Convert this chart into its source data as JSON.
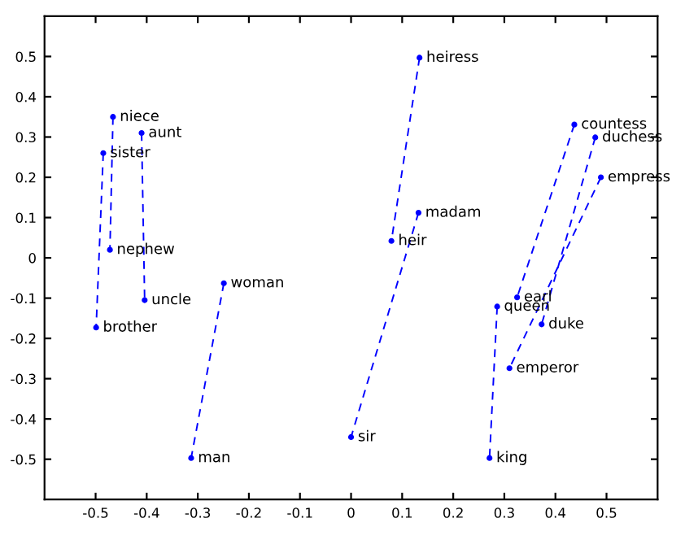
{
  "chart_data": {
    "type": "line",
    "series": [
      {
        "color": "#0000ff",
        "x": [
          -0.485,
          -0.499
        ],
        "values": [
          0.26,
          -0.173
        ]
      },
      {
        "color": "#0000ff",
        "x": [
          -0.466,
          -0.472
        ],
        "values": [
          0.35,
          0.02
        ]
      },
      {
        "color": "#0000ff",
        "x": [
          -0.41,
          -0.404
        ],
        "values": [
          0.31,
          -0.105
        ]
      },
      {
        "color": "#0000ff",
        "x": [
          -0.249,
          -0.313
        ],
        "values": [
          -0.063,
          -0.497
        ]
      },
      {
        "color": "#0000ff",
        "x": [
          0.134,
          0.079
        ],
        "values": [
          0.497,
          0.042
        ]
      },
      {
        "color": "#0000ff",
        "x": [
          0.132,
          0.0
        ],
        "values": [
          0.112,
          -0.445
        ]
      },
      {
        "color": "#0000ff",
        "x": [
          0.437,
          0.325
        ],
        "values": [
          0.331,
          -0.098
        ]
      },
      {
        "color": "#0000ff",
        "x": [
          0.478,
          0.373
        ],
        "values": [
          0.299,
          -0.165
        ]
      },
      {
        "color": "#0000ff",
        "x": [
          0.489,
          0.31
        ],
        "values": [
          0.2,
          -0.274
        ]
      },
      {
        "color": "#0000ff",
        "x": [
          0.286,
          0.271
        ],
        "values": [
          -0.121,
          -0.497
        ]
      }
    ],
    "annotations": [
      {
        "text": "sister",
        "x": -0.485,
        "y": 0.26
      },
      {
        "text": "brother",
        "x": -0.499,
        "y": -0.173
      },
      {
        "text": "niece",
        "x": -0.466,
        "y": 0.35
      },
      {
        "text": "nephew",
        "x": -0.472,
        "y": 0.02
      },
      {
        "text": "aunt",
        "x": -0.41,
        "y": 0.31
      },
      {
        "text": "uncle",
        "x": -0.404,
        "y": -0.105
      },
      {
        "text": "woman",
        "x": -0.249,
        "y": -0.063
      },
      {
        "text": "man",
        "x": -0.313,
        "y": -0.497
      },
      {
        "text": "heiress",
        "x": 0.134,
        "y": 0.497
      },
      {
        "text": "heir",
        "x": 0.079,
        "y": 0.042
      },
      {
        "text": "madam",
        "x": 0.132,
        "y": 0.112
      },
      {
        "text": "sir",
        "x": 0.0,
        "y": -0.445
      },
      {
        "text": "countess",
        "x": 0.437,
        "y": 0.331
      },
      {
        "text": "earl",
        "x": 0.325,
        "y": -0.098
      },
      {
        "text": "duchess",
        "x": 0.478,
        "y": 0.299
      },
      {
        "text": "duke",
        "x": 0.373,
        "y": -0.165
      },
      {
        "text": "empress",
        "x": 0.489,
        "y": 0.2
      },
      {
        "text": "emperor",
        "x": 0.31,
        "y": -0.274
      },
      {
        "text": "queen",
        "x": 0.286,
        "y": -0.121
      },
      {
        "text": "king",
        "x": 0.271,
        "y": -0.497
      }
    ],
    "xlim": [
      -0.6,
      0.6
    ],
    "ylim": [
      -0.6,
      0.6
    ],
    "xticks": [
      -0.5,
      -0.4,
      -0.3,
      -0.2,
      -0.1,
      0,
      0.1,
      0.2,
      0.3,
      0.4,
      0.5
    ],
    "yticks": [
      -0.5,
      -0.4,
      -0.3,
      -0.2,
      -0.1,
      0,
      0.1,
      0.2,
      0.3,
      0.4,
      0.5
    ],
    "grid": false,
    "legend": false,
    "marker": "circle",
    "line_style": "dashed"
  }
}
